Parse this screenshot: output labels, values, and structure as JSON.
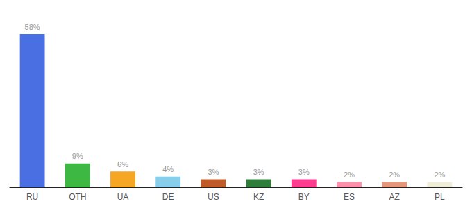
{
  "chart_data": {
    "type": "bar",
    "categories": [
      "RU",
      "OTH",
      "UA",
      "DE",
      "US",
      "KZ",
      "BY",
      "ES",
      "AZ",
      "PL"
    ],
    "values": [
      58,
      9,
      6,
      4,
      3,
      3,
      3,
      2,
      2,
      2
    ],
    "value_labels": [
      "58%",
      "9%",
      "6%",
      "4%",
      "3%",
      "3%",
      "3%",
      "2%",
      "2%",
      "2%"
    ],
    "colors": [
      "#4A6FE3",
      "#3CB843",
      "#F5A623",
      "#87CEEB",
      "#C05A28",
      "#2E7D3A",
      "#FF3D8F",
      "#FF8FAB",
      "#E8967A",
      "#F0EDD8"
    ],
    "ylim": [
      0,
      63
    ],
    "data_labels": true,
    "tick_labels": "x",
    "grid": false
  }
}
